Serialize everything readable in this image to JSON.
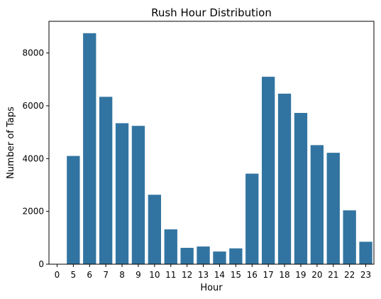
{
  "chart_data": {
    "type": "bar",
    "title": "Rush Hour Distribution",
    "xlabel": "Hour",
    "ylabel": "Number of Taps",
    "categories": [
      "0",
      "5",
      "6",
      "7",
      "8",
      "9",
      "10",
      "11",
      "12",
      "13",
      "14",
      "15",
      "16",
      "17",
      "18",
      "19",
      "20",
      "21",
      "22",
      "23"
    ],
    "values": [
      0,
      4100,
      8750,
      6340,
      5340,
      5240,
      2630,
      1320,
      620,
      670,
      480,
      600,
      3430,
      7100,
      6460,
      5730,
      4510,
      4220,
      2040,
      850
    ],
    "ylim": [
      0,
      9200
    ],
    "yticks": [
      0,
      2000,
      4000,
      6000,
      8000
    ],
    "bar_color": "#3274a1",
    "grid": false,
    "legend": "none"
  }
}
